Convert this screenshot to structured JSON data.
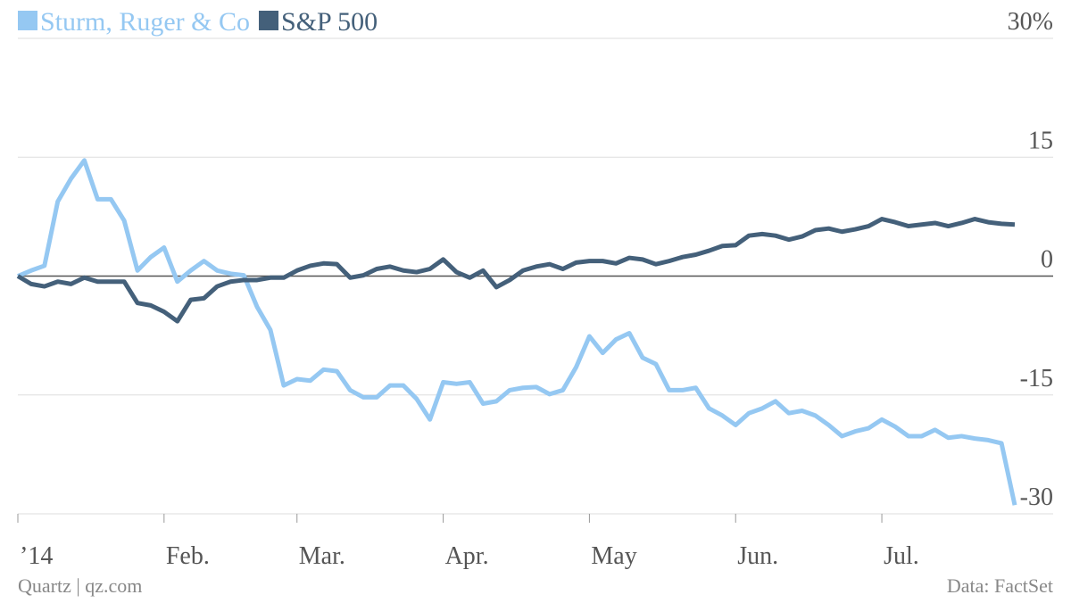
{
  "chart_data": {
    "type": "line",
    "credit": "Quartz | qz.com",
    "source": "Data: FactSet",
    "categories": [
      "’14",
      null,
      null,
      null,
      null,
      null,
      null,
      null,
      null,
      null,
      null,
      "Feb.",
      null,
      null,
      null,
      null,
      null,
      null,
      null,
      null,
      null,
      "Mar.",
      null,
      null,
      null,
      null,
      null,
      null,
      null,
      null,
      null,
      null,
      "Apr.",
      null,
      null,
      null,
      null,
      null,
      null,
      null,
      null,
      null,
      null,
      "May",
      null,
      null,
      null,
      null,
      null,
      null,
      null,
      null,
      null,
      null,
      "Jun.",
      null,
      null,
      null,
      null,
      null,
      null,
      null,
      null,
      null,
      null,
      "Jul.",
      null,
      null,
      null,
      null,
      null,
      null,
      null,
      null,
      null,
      null
    ],
    "series": [
      {
        "name": "Sturm, Ruger & Co",
        "color": "#95c8f2",
        "values": [
          0,
          0.7,
          1.3,
          9.4,
          12.3,
          14.6,
          9.7,
          9.7,
          7,
          0.7,
          2.4,
          3.6,
          -0.7,
          0.7,
          1.9,
          0.7,
          0.3,
          0.1,
          -3.9,
          -6.8,
          -13.8,
          -13,
          -13.2,
          -11.8,
          -12,
          -14.4,
          -15.3,
          -15.3,
          -13.8,
          -13.8,
          -15.5,
          -18.1,
          -13.4,
          -13.6,
          -13.4,
          -16.1,
          -15.8,
          -14.4,
          -14.1,
          -14,
          -14.9,
          -14.4,
          -11.5,
          -7.6,
          -9.7,
          -8,
          -7.2,
          -10.3,
          -11.1,
          -14.4,
          -14.4,
          -14.1,
          -16.7,
          -17.6,
          -18.8,
          -17.3,
          -16.7,
          -15.8,
          -17.3,
          -17,
          -17.6,
          -18.8,
          -20.2,
          -19.6,
          -19.2,
          -18.1,
          -19,
          -20.2,
          -20.2,
          -19.4,
          -20.4,
          -20.2,
          -20.5,
          -20.7,
          -21.1,
          -28.9
        ]
      },
      {
        "name": "S&P 500",
        "color": "#44607a",
        "values": [
          0,
          -1,
          -1.3,
          -0.7,
          -1,
          -0.2,
          -0.7,
          -0.7,
          -0.7,
          -3.4,
          -3.7,
          -4.5,
          -5.7,
          -3,
          -2.8,
          -1.3,
          -0.7,
          -0.5,
          -0.5,
          -0.2,
          -0.2,
          0.7,
          1.3,
          1.6,
          1.5,
          -0.2,
          0.1,
          0.9,
          1.2,
          0.7,
          0.5,
          0.9,
          2.1,
          0.5,
          -0.2,
          0.7,
          -1.4,
          -0.5,
          0.7,
          1.2,
          1.5,
          0.9,
          1.7,
          1.9,
          1.9,
          1.6,
          2.3,
          2.1,
          1.5,
          1.9,
          2.4,
          2.7,
          3.2,
          3.8,
          3.9,
          5.1,
          5.3,
          5.1,
          4.6,
          5,
          5.8,
          6,
          5.6,
          5.9,
          6.3,
          7.2,
          6.8,
          6.3,
          6.5,
          6.7,
          6.3,
          6.7,
          7.2,
          6.8,
          6.6,
          6.5
        ]
      }
    ],
    "ylim": [
      -30,
      30
    ],
    "yticks": [
      {
        "value": 30,
        "label": "30%"
      },
      15,
      0,
      -15,
      -30
    ],
    "grid": true
  }
}
